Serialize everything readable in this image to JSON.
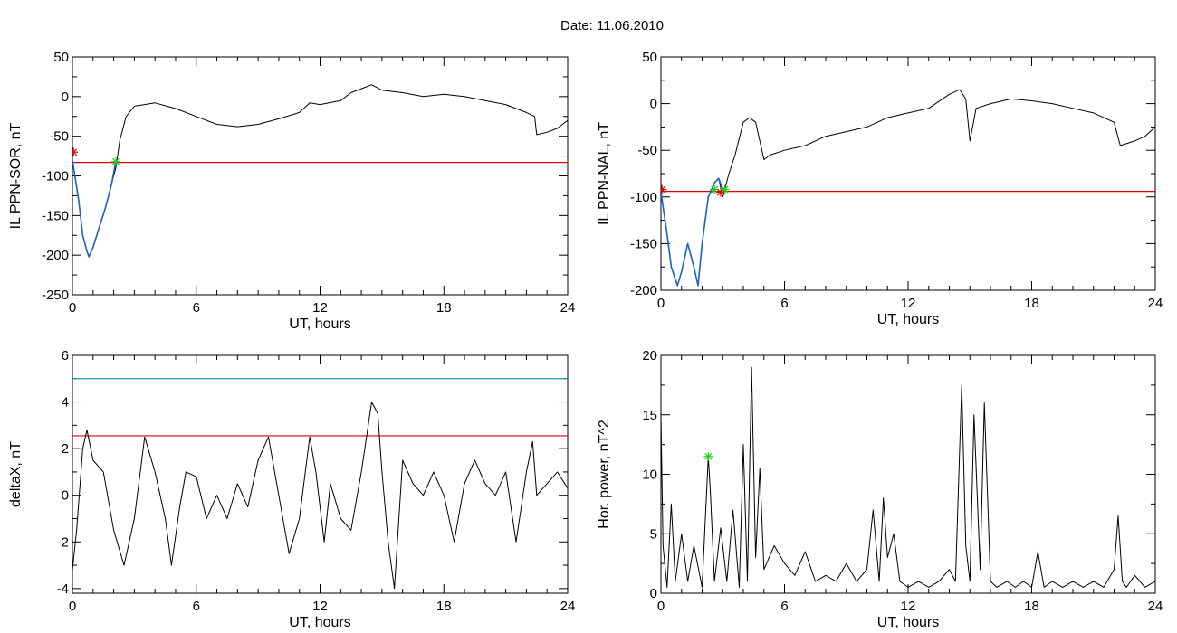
{
  "figure": {
    "title": "Date:  11.06.2010"
  },
  "chart_data": [
    {
      "type": "line",
      "xlabel": "UT, hours",
      "ylabel": "IL PPN-SOR, nT",
      "xlim": [
        0,
        24
      ],
      "ylim": [
        -250,
        50
      ],
      "xticks": [
        0,
        6,
        12,
        18,
        24
      ],
      "yticks": [
        50,
        0,
        -50,
        -100,
        -150,
        -200,
        -250
      ],
      "grid": false,
      "colors": {
        "series": "#000000",
        "highlight": "#1f5fc8",
        "threshold": "#e00000",
        "start_marker": "#e00000",
        "end_marker": "#22cc22"
      },
      "series": [
        {
          "color": "#000000",
          "x": [
            0,
            0.3,
            0.5,
            0.7,
            0.8,
            1.0,
            1.3,
            1.6,
            1.9,
            2.1,
            2.3,
            2.6,
            3.0,
            3.5,
            4.0,
            5.0,
            6.0,
            7.0,
            8.0,
            9.0,
            10.0,
            11.0,
            11.5,
            12.0,
            13.0,
            13.5,
            14.0,
            14.5,
            15.0,
            16.0,
            17.0,
            18.0,
            19.0,
            20.0,
            21.0,
            22.0,
            22.4,
            22.5,
            23.0,
            23.5,
            24.0
          ],
          "y": [
            -80,
            -130,
            -175,
            -195,
            -202,
            -190,
            -165,
            -140,
            -110,
            -90,
            -55,
            -25,
            -12,
            -10,
            -8,
            -15,
            -25,
            -35,
            -38,
            -35,
            -28,
            -20,
            -8,
            -10,
            -5,
            5,
            10,
            15,
            8,
            5,
            0,
            3,
            0,
            -5,
            -10,
            -20,
            -25,
            -48,
            -45,
            -40,
            -30
          ]
        },
        {
          "color": "#1f5fc8",
          "x": [
            0,
            0.3,
            0.5,
            0.7,
            0.8,
            1.0,
            1.3,
            1.6,
            1.9,
            2.1
          ],
          "y": [
            -80,
            -130,
            -175,
            -195,
            -202,
            -190,
            -165,
            -140,
            -110,
            -82
          ]
        }
      ],
      "reference_lines": [
        {
          "orientation": "horizontal",
          "y": -83,
          "color": "#e00000"
        }
      ],
      "markers": [
        {
          "x": 0.05,
          "y": -70,
          "color": "#e00000"
        },
        {
          "x": 2.1,
          "y": -82,
          "color": "#22cc22"
        }
      ]
    },
    {
      "type": "line",
      "xlabel": "UT, hours",
      "ylabel": "IL PPN-NAL, nT",
      "xlim": [
        0,
        24
      ],
      "ylim": [
        -200,
        50
      ],
      "xticks": [
        0,
        6,
        12,
        18,
        24
      ],
      "yticks": [
        50,
        0,
        -50,
        -100,
        -150,
        -200
      ],
      "grid": false,
      "colors": {
        "series": "#000000",
        "highlight": "#1f5fc8",
        "threshold": "#e00000",
        "start_marker": "#e00000",
        "end_marker": "#22cc22"
      },
      "series": [
        {
          "color": "#000000",
          "x": [
            0,
            0.3,
            0.5,
            0.8,
            1.0,
            1.3,
            1.6,
            1.8,
            2.0,
            2.3,
            2.6,
            2.8,
            3.0,
            3.3,
            3.6,
            4.0,
            4.3,
            4.6,
            5.0,
            5.3,
            6.0,
            7.0,
            8.0,
            9.0,
            10.0,
            11.0,
            12.0,
            13.0,
            14.0,
            14.5,
            14.8,
            15.0,
            15.3,
            16.0,
            17.0,
            18.0,
            19.0,
            20.0,
            21.0,
            22.0,
            22.3,
            23.0,
            23.5,
            24.0
          ],
          "y": [
            -95,
            -140,
            -175,
            -195,
            -180,
            -150,
            -175,
            -195,
            -150,
            -100,
            -85,
            -80,
            -100,
            -75,
            -55,
            -20,
            -15,
            -20,
            -60,
            -55,
            -50,
            -45,
            -35,
            -30,
            -25,
            -15,
            -10,
            -5,
            10,
            15,
            5,
            -40,
            -5,
            0,
            5,
            3,
            0,
            -5,
            -10,
            -20,
            -45,
            -40,
            -35,
            -25
          ]
        },
        {
          "color": "#1f5fc8",
          "x": [
            0,
            0.3,
            0.5,
            0.8,
            1.0,
            1.3,
            1.6,
            1.8,
            2.0,
            2.3,
            2.6,
            2.8,
            3.0
          ],
          "y": [
            -95,
            -140,
            -175,
            -195,
            -180,
            -150,
            -175,
            -195,
            -150,
            -100,
            -85,
            -80,
            -92
          ]
        }
      ],
      "reference_lines": [
        {
          "orientation": "horizontal",
          "y": -94,
          "color": "#e00000"
        }
      ],
      "markers": [
        {
          "x": 0.05,
          "y": -92,
          "color": "#e00000"
        },
        {
          "x": 2.6,
          "y": -92,
          "color": "#22cc22"
        },
        {
          "x": 2.9,
          "y": -95,
          "color": "#e00000"
        },
        {
          "x": 3.1,
          "y": -92,
          "color": "#22cc22"
        }
      ]
    },
    {
      "type": "line",
      "xlabel": "UT, hours",
      "ylabel": "deltaX, nT",
      "xlim": [
        0,
        24
      ],
      "ylim": [
        -4.2,
        6
      ],
      "xticks": [
        0,
        6,
        12,
        18,
        24
      ],
      "yticks": [
        6,
        4,
        2,
        0,
        -2,
        -4
      ],
      "grid": false,
      "colors": {
        "series": "#000000",
        "threshold_upper": "#1f8fb0",
        "threshold_lower": "#e00000"
      },
      "series": [
        {
          "color": "#000000",
          "x": [
            0,
            0.2,
            0.5,
            0.7,
            1.0,
            1.5,
            2.0,
            2.5,
            3.0,
            3.5,
            4.0,
            4.5,
            4.8,
            5.2,
            5.5,
            6.0,
            6.5,
            7.0,
            7.5,
            8.0,
            8.5,
            9.0,
            9.5,
            10.0,
            10.5,
            11.0,
            11.5,
            11.8,
            12.2,
            12.5,
            13.0,
            13.5,
            14.0,
            14.5,
            14.8,
            15.0,
            15.3,
            15.6,
            16.0,
            16.5,
            17.0,
            17.5,
            18.0,
            18.5,
            19.0,
            19.5,
            20.0,
            20.5,
            21.0,
            21.5,
            22.0,
            22.3,
            22.5,
            23.0,
            23.5,
            24.0
          ],
          "y": [
            -3.2,
            -1.5,
            2.0,
            2.8,
            1.5,
            1.0,
            -1.5,
            -3.0,
            -1.0,
            2.5,
            1.0,
            -1.0,
            -3.0,
            -0.5,
            1.0,
            0.8,
            -1.0,
            0.0,
            -1.0,
            0.5,
            -0.5,
            1.5,
            2.5,
            0.0,
            -2.5,
            -1.0,
            2.5,
            1.0,
            -2.0,
            0.5,
            -1.0,
            -1.5,
            1.0,
            4.0,
            3.5,
            1.0,
            -2.0,
            -4.0,
            1.5,
            0.5,
            0.0,
            1.0,
            0.0,
            -2.0,
            0.5,
            1.5,
            0.5,
            0.0,
            1.0,
            -2.0,
            1.0,
            2.3,
            0.0,
            0.5,
            1.0,
            0.3
          ]
        }
      ],
      "reference_lines": [
        {
          "orientation": "horizontal",
          "y": 5.0,
          "color": "#1f8fb0"
        },
        {
          "orientation": "horizontal",
          "y": 2.55,
          "color": "#e00000"
        }
      ],
      "markers": []
    },
    {
      "type": "line",
      "xlabel": "UT, hours",
      "ylabel": "Hor. power, nT^2",
      "xlim": [
        0,
        24
      ],
      "ylim": [
        0,
        20
      ],
      "xticks": [
        0,
        6,
        12,
        18,
        24
      ],
      "yticks": [
        20,
        15,
        10,
        5,
        0
      ],
      "grid": false,
      "colors": {
        "series": "#000000",
        "marker": "#22cc22"
      },
      "series": [
        {
          "color": "#000000",
          "x": [
            0,
            0.1,
            0.3,
            0.5,
            0.7,
            1.0,
            1.3,
            1.6,
            2.0,
            2.3,
            2.4,
            2.6,
            2.9,
            3.2,
            3.5,
            3.8,
            4.0,
            4.2,
            4.4,
            4.6,
            4.8,
            5.0,
            5.5,
            6.0,
            6.5,
            7.0,
            7.5,
            8.0,
            8.5,
            9.0,
            9.5,
            10.0,
            10.3,
            10.6,
            10.8,
            11.0,
            11.3,
            11.6,
            12.0,
            12.5,
            13.0,
            13.5,
            14.0,
            14.3,
            14.6,
            14.8,
            15.0,
            15.2,
            15.5,
            15.7,
            16.0,
            16.3,
            16.8,
            17.2,
            17.6,
            18.0,
            18.3,
            18.6,
            19.0,
            19.5,
            20.0,
            20.5,
            21.0,
            21.5,
            22.0,
            22.2,
            22.4,
            22.6,
            23.0,
            23.5,
            24.0
          ],
          "y": [
            15.0,
            4.0,
            0.5,
            7.5,
            1.0,
            5.0,
            1.0,
            4.0,
            0.5,
            11.5,
            8.5,
            1.0,
            5.5,
            1.0,
            7.0,
            0.5,
            12.5,
            1.0,
            19.0,
            3.0,
            10.5,
            2.0,
            4.0,
            2.5,
            1.5,
            3.5,
            1.0,
            1.5,
            1.0,
            2.5,
            1.0,
            2.0,
            7.0,
            1.0,
            8.0,
            3.0,
            5.0,
            1.0,
            0.5,
            1.0,
            0.5,
            1.0,
            2.0,
            1.0,
            17.5,
            4.0,
            1.0,
            15.0,
            2.0,
            16.0,
            1.0,
            0.5,
            1.0,
            0.5,
            1.0,
            0.5,
            3.5,
            0.5,
            1.0,
            0.5,
            1.0,
            0.5,
            1.0,
            0.5,
            2.0,
            6.5,
            1.0,
            0.5,
            1.5,
            0.5,
            1.0
          ]
        }
      ],
      "reference_lines": [],
      "markers": [
        {
          "x": 2.3,
          "y": 11.5,
          "color": "#22cc22"
        }
      ]
    }
  ]
}
